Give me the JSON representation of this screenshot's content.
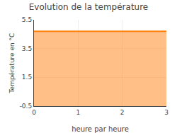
{
  "chart_data": {
    "type": "area",
    "title": "Evolution de la température",
    "xlabel": "heure par heure",
    "ylabel": "Température en °C",
    "x": [
      0,
      3
    ],
    "values": [
      4.7,
      4.7
    ],
    "xlim": [
      0,
      3
    ],
    "ylim": [
      -0.5,
      5.5
    ],
    "xticks": [
      0,
      1,
      2,
      3
    ],
    "yticks": [
      -0.5,
      1.5,
      3.5,
      5.5
    ],
    "grid": true
  }
}
